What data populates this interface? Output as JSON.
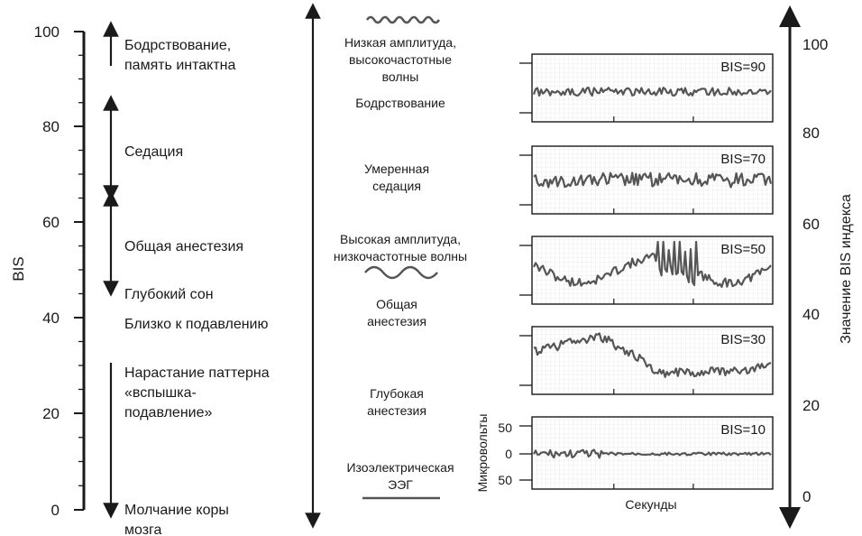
{
  "left_scale": {
    "axis_label": "BIS",
    "ticks": [
      "0",
      "20",
      "40",
      "60",
      "80",
      "100"
    ]
  },
  "states": [
    {
      "lines": [
        "Бодрствование,",
        "память интактна"
      ]
    },
    {
      "lines": [
        "Седация"
      ]
    },
    {
      "lines": [
        "Общая анестезия"
      ]
    },
    {
      "lines": [
        "Глубокий сон"
      ]
    },
    {
      "lines": [
        "Близко к подавлению"
      ]
    },
    {
      "lines": [
        "Нарастание паттерна",
        "«вспышка-",
        "подавление»"
      ]
    },
    {
      "lines": [
        "Молчание коры",
        "мозга"
      ]
    }
  ],
  "middle": [
    {
      "lines": [
        "Низкая амплитуда,",
        "высокочастотные",
        "волны"
      ]
    },
    {
      "lines": [
        "Бодрствование"
      ]
    },
    {
      "lines": [
        "Умеренная",
        "седация"
      ]
    },
    {
      "lines": [
        "Высокая амплитуда,",
        "низкочастотные волны"
      ]
    },
    {
      "lines": [
        "Общая",
        "анестезия"
      ]
    },
    {
      "lines": [
        "Глубокая",
        "анестезия"
      ]
    },
    {
      "lines": [
        "Изоэлектрическая",
        "ЭЭГ"
      ]
    }
  ],
  "eeg_panels": [
    {
      "label": "BIS=90",
      "bis": 90
    },
    {
      "label": "BIS=70",
      "bis": 70
    },
    {
      "label": "BIS=50",
      "bis": 50
    },
    {
      "label": "BIS=30",
      "bis": 30
    },
    {
      "label": "BIS=10",
      "bis": 10
    }
  ],
  "microvolts": {
    "axis_label": "Микровольты",
    "ticks": [
      "50",
      "0",
      "50"
    ]
  },
  "time_axis_label": "Секунды",
  "right_scale": {
    "axis_label": "Значение BIS индекса",
    "ticks": [
      "0",
      "20",
      "40",
      "60",
      "80",
      "100"
    ]
  },
  "colors": {
    "trace": "#555555",
    "grid": "#d8d8d8",
    "ink": "#1a1a1a"
  }
}
